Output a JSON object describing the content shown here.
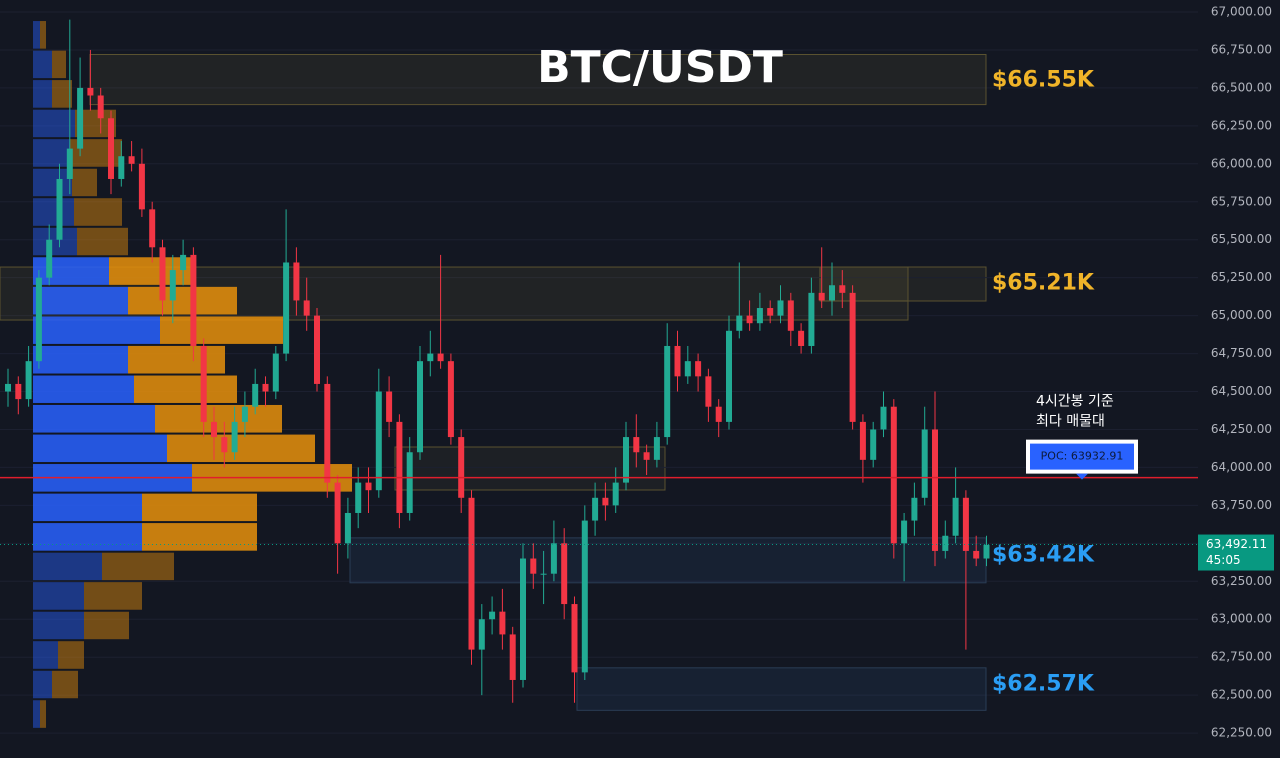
{
  "chart_data": {
    "type": "candlestick",
    "title": "BTC/USDT",
    "ylim": [
      62086,
      67079
    ],
    "yticks": [
      {
        "value": 67000,
        "label": "67,000.00"
      },
      {
        "value": 66750,
        "label": "66,750.00"
      },
      {
        "value": 66500,
        "label": "66,500.00"
      },
      {
        "value": 66250,
        "label": "66,250.00"
      },
      {
        "value": 66000,
        "label": "66,000.00"
      },
      {
        "value": 65750,
        "label": "65,750.00"
      },
      {
        "value": 65500,
        "label": "65,500.00"
      },
      {
        "value": 65250,
        "label": "65,250.00"
      },
      {
        "value": 65000,
        "label": "65,000.00"
      },
      {
        "value": 64750,
        "label": "64,750.00"
      },
      {
        "value": 64500,
        "label": "64,500.00"
      },
      {
        "value": 64250,
        "label": "64,250.00"
      },
      {
        "value": 64000,
        "label": "64,000.00"
      },
      {
        "value": 63750,
        "label": "63,750.00"
      },
      {
        "value": 63500,
        "label": "63,500.00"
      },
      {
        "value": 63250,
        "label": "63,250.00"
      },
      {
        "value": 63000,
        "label": "63,000.00"
      },
      {
        "value": 62750,
        "label": "62,750.00"
      },
      {
        "value": 62500,
        "label": "62,500.00"
      },
      {
        "value": 62250,
        "label": "62,250.00"
      }
    ],
    "up_color": "#22ab94",
    "down_color": "#f23645",
    "ohlc": [
      [
        64500,
        64650,
        64400,
        64550
      ],
      [
        64550,
        64600,
        64350,
        64450
      ],
      [
        64450,
        64800,
        64400,
        64700
      ],
      [
        64700,
        65300,
        64650,
        65250
      ],
      [
        65250,
        65600,
        65200,
        65500
      ],
      [
        65500,
        66000,
        65450,
        65900
      ],
      [
        65900,
        66950,
        65800,
        66100
      ],
      [
        66100,
        66700,
        66050,
        66500
      ],
      [
        66500,
        66750,
        66350,
        66450
      ],
      [
        66450,
        66500,
        66200,
        66300
      ],
      [
        66300,
        66350,
        65800,
        65900
      ],
      [
        65900,
        66150,
        65850,
        66050
      ],
      [
        66050,
        66150,
        65950,
        66000
      ],
      [
        66000,
        66100,
        65650,
        65700
      ],
      [
        65700,
        65750,
        65350,
        65450
      ],
      [
        65450,
        65500,
        65000,
        65100
      ],
      [
        65100,
        65400,
        64950,
        65300
      ],
      [
        65300,
        65500,
        65200,
        65400
      ],
      [
        65400,
        65450,
        64700,
        64800
      ],
      [
        64800,
        64850,
        64200,
        64300
      ],
      [
        64300,
        64400,
        64050,
        64200
      ],
      [
        64200,
        64300,
        64000,
        64100
      ],
      [
        64100,
        64400,
        64050,
        64300
      ],
      [
        64300,
        64500,
        64200,
        64400
      ],
      [
        64400,
        64650,
        64350,
        64550
      ],
      [
        64550,
        64600,
        64400,
        64500
      ],
      [
        64500,
        64800,
        64450,
        64750
      ],
      [
        64750,
        65700,
        64700,
        65350
      ],
      [
        65350,
        65450,
        65000,
        65100
      ],
      [
        65100,
        65250,
        64900,
        65000
      ],
      [
        65000,
        65050,
        64500,
        64550
      ],
      [
        64550,
        64600,
        63800,
        63900
      ],
      [
        63900,
        63950,
        63300,
        63500
      ],
      [
        63500,
        63800,
        63400,
        63700
      ],
      [
        63700,
        64000,
        63600,
        63900
      ],
      [
        63900,
        64000,
        63700,
        63850
      ],
      [
        63850,
        64650,
        63800,
        64500
      ],
      [
        64500,
        64600,
        64200,
        64300
      ],
      [
        64300,
        64350,
        63600,
        63700
      ],
      [
        63700,
        64200,
        63650,
        64100
      ],
      [
        64100,
        64800,
        64050,
        64700
      ],
      [
        64700,
        64900,
        64600,
        64750
      ],
      [
        64750,
        65400,
        64650,
        64700
      ],
      [
        64700,
        64750,
        64150,
        64200
      ],
      [
        64200,
        64250,
        63700,
        63800
      ],
      [
        63800,
        63850,
        62700,
        62800
      ],
      [
        62800,
        63100,
        62500,
        63000
      ],
      [
        63000,
        63150,
        62900,
        63050
      ],
      [
        63050,
        63200,
        62800,
        62900
      ],
      [
        62900,
        62950,
        62450,
        62600
      ],
      [
        62600,
        63500,
        62550,
        63400
      ],
      [
        63400,
        63500,
        63200,
        63300
      ],
      [
        63300,
        63450,
        63100,
        63300
      ],
      [
        63300,
        63650,
        63250,
        63500
      ],
      [
        63500,
        63600,
        63000,
        63100
      ],
      [
        63100,
        63150,
        62450,
        62650
      ],
      [
        62650,
        63750,
        62600,
        63650
      ],
      [
        63650,
        63900,
        63550,
        63800
      ],
      [
        63800,
        63900,
        63650,
        63750
      ],
      [
        63750,
        64000,
        63700,
        63900
      ],
      [
        63900,
        64300,
        63850,
        64200
      ],
      [
        64200,
        64350,
        64000,
        64100
      ],
      [
        64100,
        64150,
        63950,
        64050
      ],
      [
        64050,
        64300,
        64000,
        64200
      ],
      [
        64200,
        64950,
        64150,
        64800
      ],
      [
        64800,
        64900,
        64500,
        64600
      ],
      [
        64600,
        64800,
        64550,
        64700
      ],
      [
        64700,
        64750,
        64500,
        64600
      ],
      [
        64600,
        64650,
        64300,
        64400
      ],
      [
        64400,
        64450,
        64200,
        64300
      ],
      [
        64300,
        65000,
        64250,
        64900
      ],
      [
        64900,
        65350,
        64850,
        65000
      ],
      [
        65000,
        65100,
        64900,
        64950
      ],
      [
        64950,
        65150,
        64900,
        65050
      ],
      [
        65050,
        65100,
        64950,
        65000
      ],
      [
        65000,
        65200,
        64950,
        65100
      ],
      [
        65100,
        65150,
        64800,
        64900
      ],
      [
        64900,
        64950,
        64750,
        64800
      ],
      [
        64800,
        65250,
        64750,
        65150
      ],
      [
        65150,
        65450,
        65050,
        65100
      ],
      [
        65100,
        65350,
        65000,
        65200
      ],
      [
        65200,
        65300,
        65050,
        65150
      ],
      [
        65150,
        65200,
        64250,
        64300
      ],
      [
        64300,
        64350,
        63900,
        64050
      ],
      [
        64050,
        64300,
        64000,
        64250
      ],
      [
        64250,
        64500,
        64200,
        64400
      ],
      [
        64400,
        64450,
        63400,
        63500
      ],
      [
        63500,
        63700,
        63250,
        63650
      ],
      [
        63650,
        63900,
        63550,
        63800
      ],
      [
        63800,
        64400,
        63750,
        64250
      ],
      [
        64250,
        64500,
        63350,
        63450
      ],
      [
        63450,
        63650,
        63400,
        63550
      ],
      [
        63550,
        64000,
        63500,
        63800
      ],
      [
        63800,
        63850,
        62800,
        63450
      ],
      [
        63450,
        63550,
        63350,
        63400
      ],
      [
        63400,
        63550,
        63350,
        63490
      ]
    ],
    "volume_profile": {
      "bins": [
        66947,
        66752,
        66558,
        66363,
        66169,
        65974,
        65780,
        65585,
        65391,
        65196,
        65001,
        64807,
        64612,
        64418,
        64223,
        64029,
        63834,
        63640,
        63445,
        63251,
        63056,
        62862,
        62667,
        62473,
        62278
      ],
      "buy": [
        7,
        19,
        19,
        42,
        37,
        39,
        41,
        44,
        76,
        95,
        127,
        95,
        101,
        122,
        134,
        159,
        109,
        109,
        69,
        51,
        51,
        25,
        19,
        7
      ],
      "sell": [
        6,
        14,
        20,
        41,
        52,
        25,
        48,
        51,
        84,
        109,
        123,
        97,
        103,
        127,
        148,
        160,
        115,
        115,
        72,
        58,
        45,
        26,
        26,
        6
      ],
      "buy_color": "#2962ff",
      "sell_color": "#e8900c"
    },
    "zones": [
      {
        "label": "$66.55K",
        "value": 66550,
        "top": 66720,
        "bottom": 66390,
        "color": "#f0b429"
      },
      {
        "label": "$65.21K",
        "value": 65210,
        "top": 65320,
        "bottom": 64971,
        "color": "#f0b429"
      },
      {
        "label": "$63.42K",
        "value": 63420,
        "top": 63536,
        "bottom": 63240,
        "color": "#2a9df4"
      },
      {
        "label": "$62.57K",
        "value": 62570,
        "top": 62680,
        "bottom": 62400,
        "color": "#2a9df4"
      }
    ],
    "poc": {
      "value": 63932.91,
      "label": "POC: 63932.91"
    },
    "poc_note": [
      "4시간봉 기준",
      "최다 매물대"
    ],
    "last_price": {
      "value": 63492.11,
      "label": "63,492.11"
    },
    "countdown": "45:05"
  }
}
